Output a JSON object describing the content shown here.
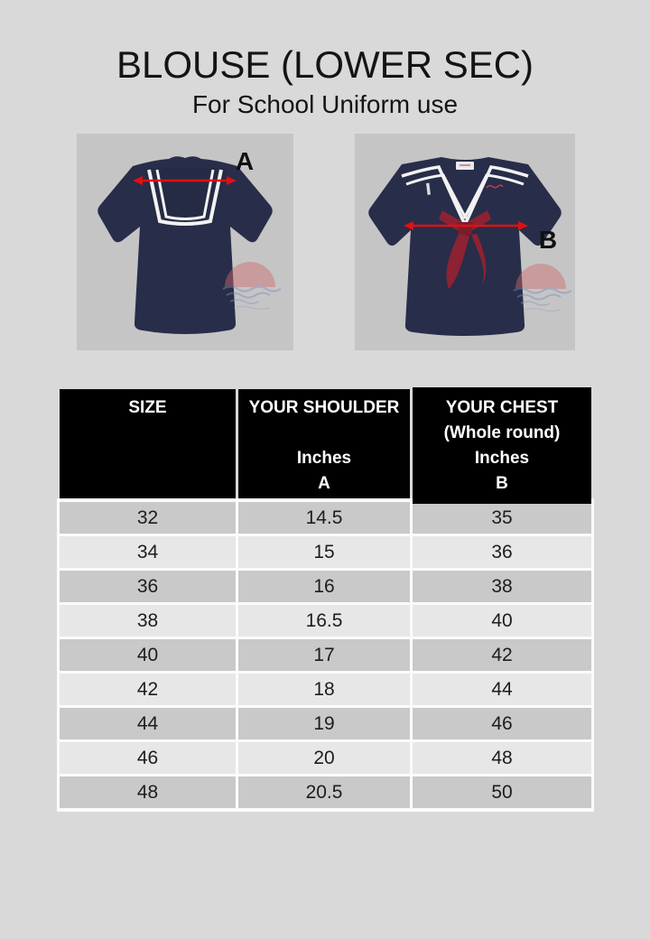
{
  "page": {
    "title": "BLOUSE (LOWER SEC)",
    "subtitle": "For School Uniform use"
  },
  "figures": {
    "back": {
      "label": "A"
    },
    "front": {
      "label": "B"
    }
  },
  "size_table": {
    "headers": {
      "size": {
        "lines": [
          "SIZE",
          "",
          "",
          ""
        ]
      },
      "shoulder": {
        "lines": [
          "YOUR SHOULDER",
          "",
          "Inches",
          "A"
        ]
      },
      "chest": {
        "lines": [
          "YOUR CHEST",
          "(Whole round)",
          "Inches",
          "B"
        ]
      }
    },
    "rows": [
      {
        "size": "32",
        "shoulder": "14.5",
        "chest": "35"
      },
      {
        "size": "34",
        "shoulder": "15",
        "chest": "36"
      },
      {
        "size": "36",
        "shoulder": "16",
        "chest": "38"
      },
      {
        "size": "38",
        "shoulder": "16.5",
        "chest": "40"
      },
      {
        "size": "40",
        "shoulder": "17",
        "chest": "42"
      },
      {
        "size": "42",
        "shoulder": "18",
        "chest": "44"
      },
      {
        "size": "44",
        "shoulder": "19",
        "chest": "46"
      },
      {
        "size": "46",
        "shoulder": "20",
        "chest": "48"
      },
      {
        "size": "48",
        "shoulder": "20.5",
        "chest": "50"
      }
    ]
  },
  "colors": {
    "page_bg": "#d9d9d9",
    "photo_bg": "#c5c5c6",
    "header_bg": "#000000",
    "header_text": "#ffffff",
    "row_dark": "#c9c9c9",
    "row_light": "#e7e7e7",
    "grid_line": "#fbfbfb",
    "arrow_red": "#e01010",
    "blouse_navy": "#282d49",
    "necktie_maroon": "#8d2233"
  }
}
